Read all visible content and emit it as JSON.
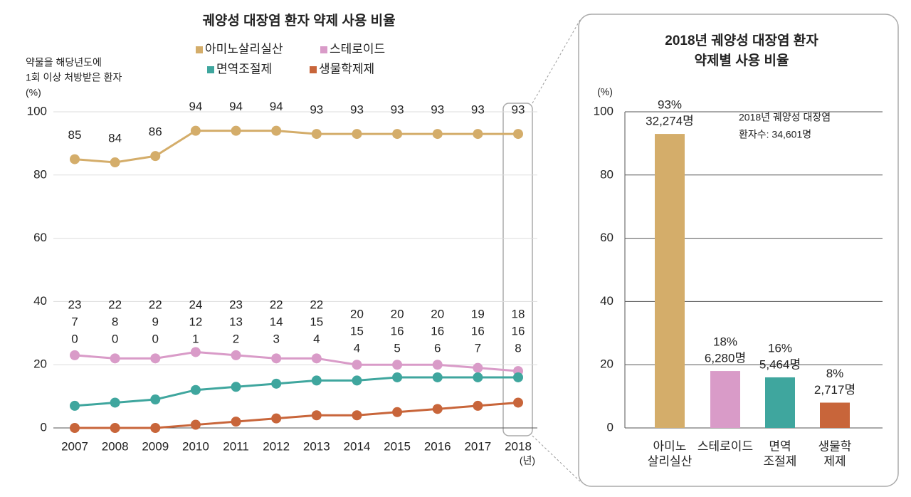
{
  "chart_data": [
    {
      "type": "line",
      "title": "궤양성 대장염 환자 약제 사용 비율",
      "y_label": [
        "약물을 해당년도에",
        "1회 이상 처방받은 환자",
        "(%)"
      ],
      "x_unit": "(년)",
      "categories": [
        "2007",
        "2008",
        "2009",
        "2010",
        "2011",
        "2012",
        "2013",
        "2014",
        "2015",
        "2016",
        "2017",
        "2018"
      ],
      "series": [
        {
          "name": "아미노살리실산",
          "color": "#d4ad6a",
          "values": [
            85,
            84,
            86,
            94,
            94,
            94,
            93,
            93,
            93,
            93,
            93,
            93
          ]
        },
        {
          "name": "스테로이드",
          "color": "#d99bc8",
          "values": [
            23,
            22,
            22,
            24,
            23,
            22,
            22,
            20,
            20,
            20,
            19,
            18
          ]
        },
        {
          "name": "면역조절제",
          "color": "#3fa69e",
          "values": [
            7,
            8,
            9,
            12,
            13,
            14,
            15,
            15,
            16,
            16,
            16,
            16
          ]
        },
        {
          "name": "생물학제제",
          "color": "#c8653a",
          "values": [
            0,
            0,
            0,
            1,
            2,
            3,
            4,
            4,
            5,
            6,
            7,
            8
          ]
        }
      ],
      "ylim": [
        0,
        100
      ],
      "yticks": [
        0,
        20,
        40,
        60,
        80,
        100
      ],
      "grid": true
    },
    {
      "type": "bar",
      "title": [
        "2018년 궤양성 대장염 환자",
        "약제별 사용 비율"
      ],
      "y_label": "(%)",
      "annotation": [
        "2018년 궤양성 대장염",
        "환자수: 34,601명"
      ],
      "categories": [
        [
          "아미노",
          "살리실산"
        ],
        [
          "스테로이드"
        ],
        [
          "면역",
          "조절제"
        ],
        [
          "생물학",
          "제제"
        ]
      ],
      "values": [
        93,
        18,
        16,
        8
      ],
      "value_labels": [
        "93%",
        "18%",
        "16%",
        "8%"
      ],
      "count_labels": [
        "32,274명",
        "6,280명",
        "5,464명",
        "2,717명"
      ],
      "colors": [
        "#d4ad6a",
        "#d99bc8",
        "#3fa69e",
        "#c8653a"
      ],
      "ylim": [
        0,
        100
      ],
      "yticks": [
        0,
        20,
        40,
        60,
        80,
        100
      ]
    }
  ]
}
